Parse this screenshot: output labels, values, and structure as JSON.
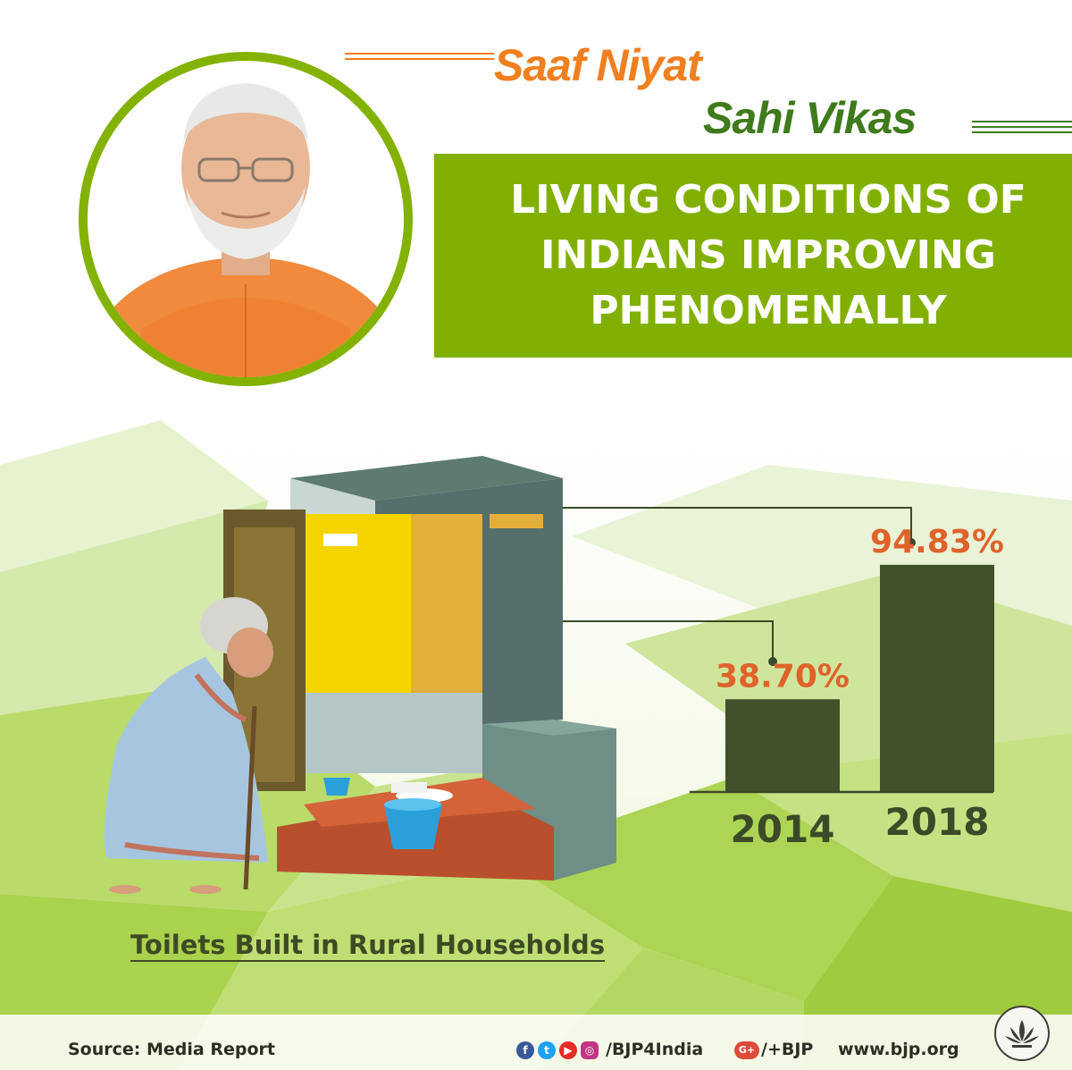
{
  "slogan": {
    "line1": "Saaf Niyat",
    "line2": "Sahi Vikas"
  },
  "headline": {
    "line1": "LIVING CONDITIONS OF",
    "line2": "INDIANS IMPROVING",
    "line3": "PHENOMENALLY"
  },
  "chart_data": {
    "type": "bar",
    "title": "Toilets Built in Rural Households",
    "categories": [
      "2014",
      "2018"
    ],
    "values": [
      38.7,
      94.83
    ],
    "value_labels": [
      "38.70%",
      "94.83%"
    ],
    "unit": "%",
    "ylim": [
      0,
      100
    ],
    "grid": false,
    "legend": "none",
    "colors": {
      "bar": "#41512b",
      "value_label": "#e0622b",
      "tick_label": "#3b4a27"
    }
  },
  "footer": {
    "source": "Source: Media Report",
    "social_handle": "/BJP4India",
    "gplus_handle": "/+BJP",
    "website": "www.bjp.org",
    "icons": [
      "facebook-icon",
      "twitter-icon",
      "youtube-icon",
      "instagram-icon",
      "google-plus-icon",
      "lotus-logo-icon"
    ]
  },
  "colors": {
    "green": "#82b002",
    "dark_green": "#3f7a1d",
    "orange": "#f07f1f"
  }
}
